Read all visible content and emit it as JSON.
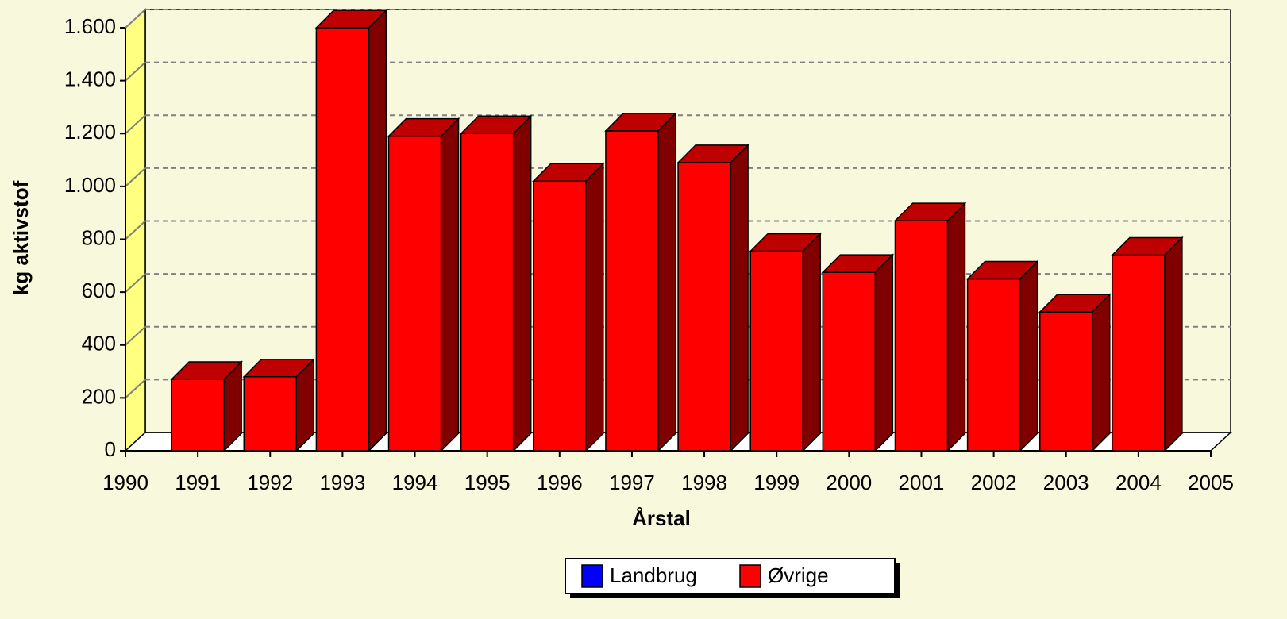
{
  "chart_data": {
    "type": "bar3d_stacked",
    "x_label": "Årstal",
    "y_label": "kg aktivstof",
    "x": [
      1991,
      1992,
      1993,
      1994,
      1995,
      1996,
      1997,
      1998,
      1999,
      2000,
      2001,
      2002,
      2003,
      2004
    ],
    "series": [
      {
        "name": "Landbrug",
        "color": "#0000ff",
        "values": [
          0,
          0,
          0,
          0,
          0,
          0,
          0,
          0,
          0,
          0,
          0,
          0,
          0,
          0
        ]
      },
      {
        "name": "Øvrige",
        "color": "#ff0000",
        "values": [
          270,
          280,
          1600,
          1190,
          1200,
          1020,
          1210,
          1090,
          755,
          675,
          870,
          650,
          525,
          740
        ]
      }
    ],
    "xlim": [
      1990,
      2005
    ],
    "xticks": [
      1990,
      1991,
      1992,
      1993,
      1994,
      1995,
      1996,
      1997,
      1998,
      1999,
      2000,
      2001,
      2002,
      2003,
      2004,
      2005
    ],
    "ylim": [
      0,
      1600
    ],
    "yticks": [
      0,
      200,
      400,
      600,
      800,
      {
        "value": 1000,
        "label": "1.000"
      },
      {
        "value": 1200,
        "label": "1.200"
      },
      {
        "value": 1400,
        "label": "1.400"
      },
      {
        "value": 1600,
        "label": "1.600"
      }
    ],
    "grid": true,
    "legend": "bottom"
  }
}
